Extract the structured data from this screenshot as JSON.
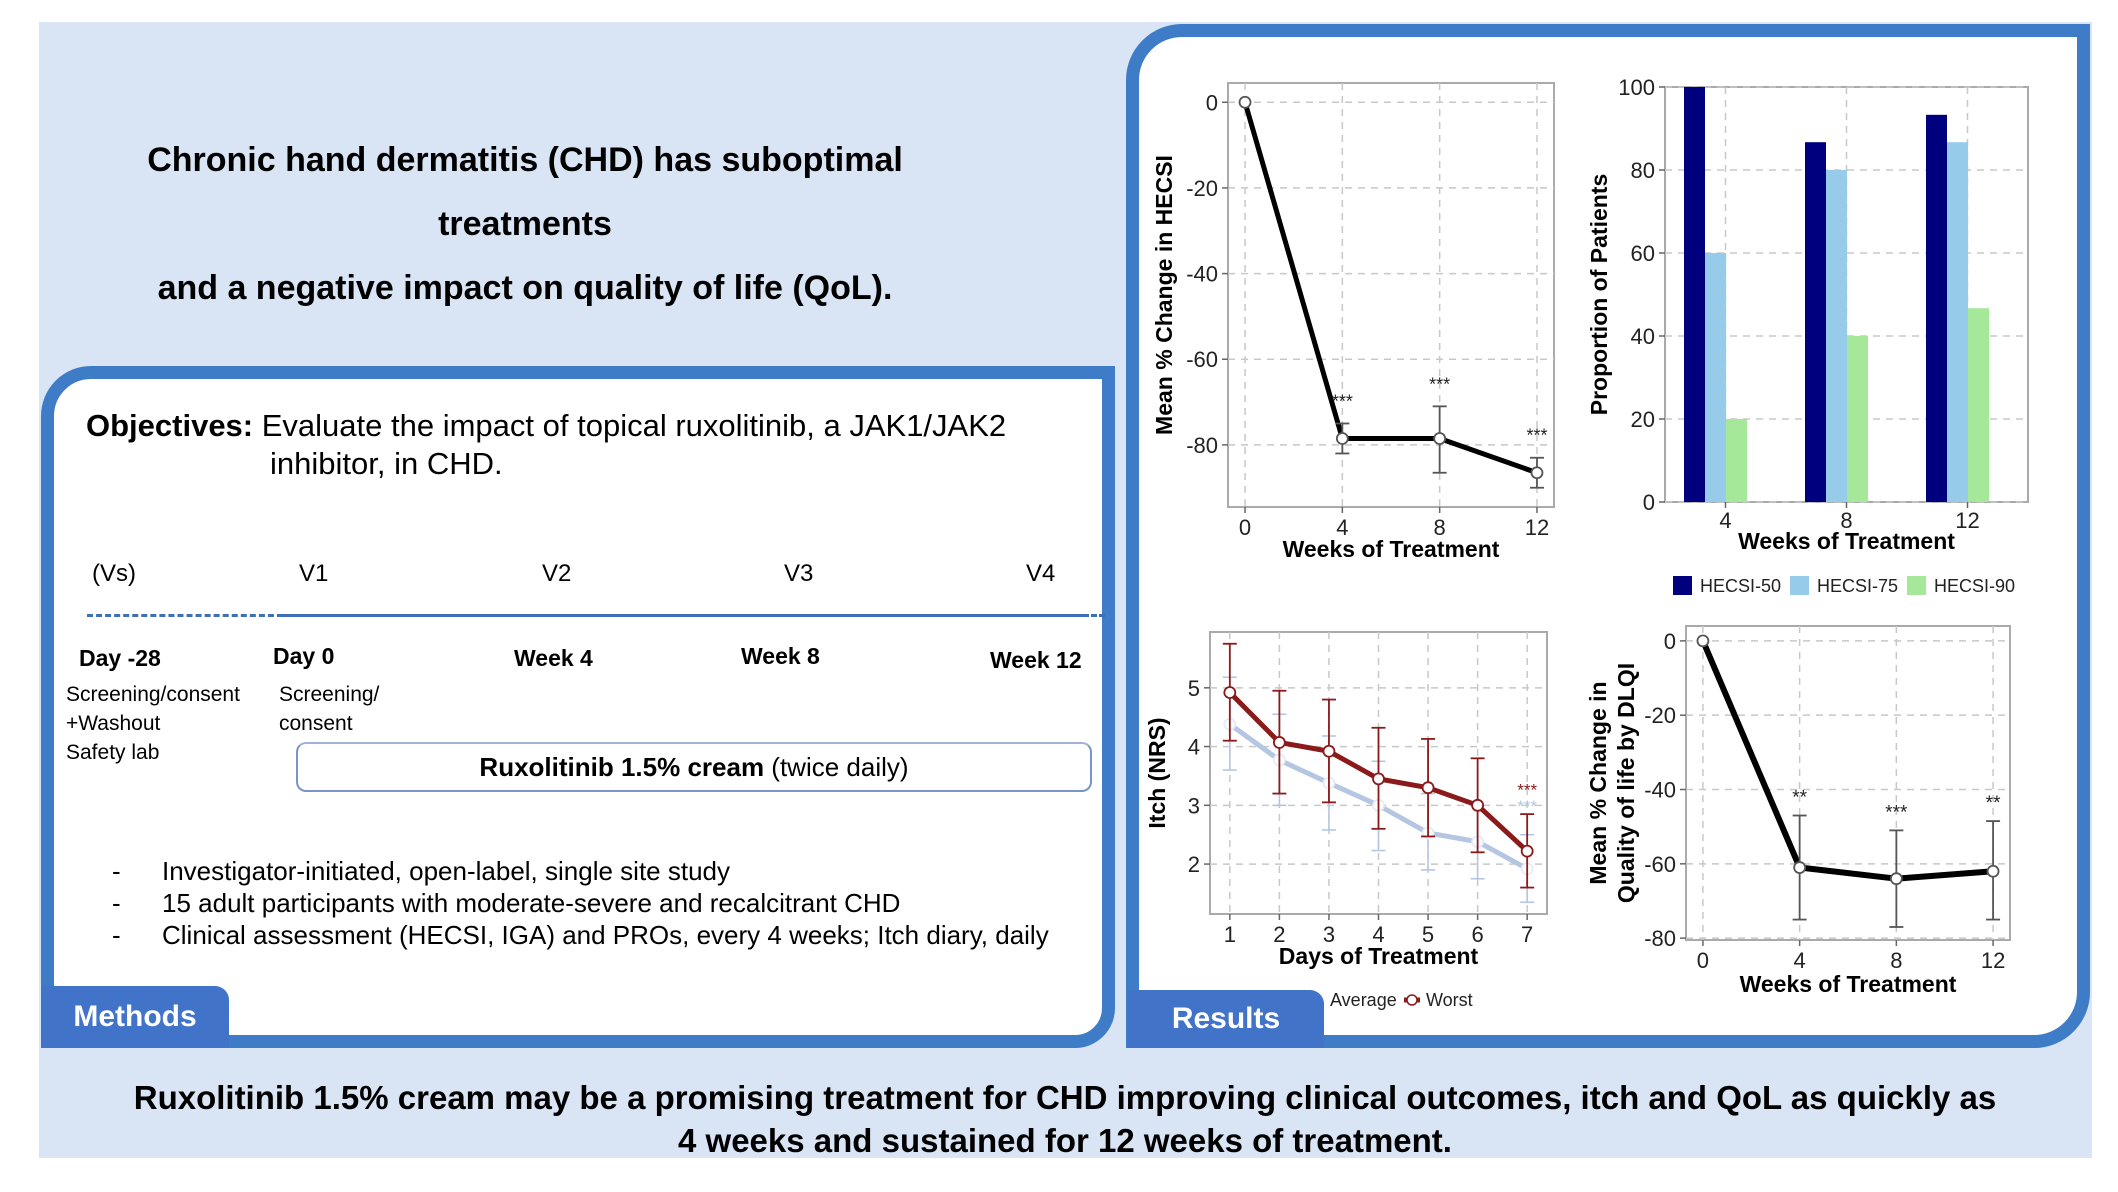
{
  "intro": {
    "line1": "Chronic hand dermatitis (CHD) has suboptimal treatments",
    "line2": "and a negative impact on quality of life (QoL)."
  },
  "methods": {
    "tab_label": "Methods",
    "objectives_label": "Objectives:",
    "objectives_text_1": "Evaluate the impact of topical ruxolitinib, a JAK1/JAK2",
    "objectives_text_2": "inhibitor, in CHD.",
    "timeline": {
      "visits": [
        "(Vs)",
        "V1",
        "V2",
        "V3",
        "V4"
      ],
      "times": [
        "Day -28",
        "Day 0",
        "Week 4",
        "Week 8",
        "Week 12"
      ],
      "screening_desc": [
        "Screening/consent",
        "+Washout",
        "Safety lab"
      ],
      "day0_desc": [
        "Screening/",
        "consent"
      ],
      "treatment_bold": "Ruxolitinib 1.5% cream",
      "treatment_rest": " (twice daily)"
    },
    "bullets": [
      "Investigator-initiated, open-label, single site study",
      "15 adult participants with moderate-severe and recalcitrant CHD",
      "Clinical assessment (HECSI, IGA) and PROs, every 4 weeks; Itch diary, daily"
    ]
  },
  "results": {
    "tab_label": "Results"
  },
  "conclusion": {
    "line1": "Ruxolitinib 1.5% cream may be a promising treatment for CHD improving clinical outcomes, itch and QoL as quickly as",
    "line2": "4 weeks and sustained for 12 weeks of treatment."
  },
  "colors": {
    "panel_border": "#3f7cc8",
    "tab": "#4174c9",
    "background": "#d9e4f4",
    "hecsi50": "#00007f",
    "hecsi75": "#97cbea",
    "hecsi90": "#a5e89a",
    "worst": "#8b1a1a",
    "average": "#b5c6e2"
  },
  "chart_data": [
    {
      "id": "hecsi",
      "type": "line",
      "title": "",
      "xlabel": "Weeks of Treatment",
      "ylabel": "Mean % Change in HECSI",
      "x": [
        0,
        4,
        8,
        12
      ],
      "xticks": [
        0,
        4,
        8,
        12
      ],
      "yticks": [
        0,
        -20,
        -40,
        -60,
        -80
      ],
      "xlim": [
        -0.7,
        12.7
      ],
      "ylim": [
        -94.5,
        4.5
      ],
      "grid": true,
      "series": [
        {
          "name": "HECSI",
          "values": [
            0,
            -78.5,
            -78.5,
            -86.5
          ],
          "err_low": [
            0,
            -82,
            -86.5,
            -90
          ],
          "err_high": [
            0,
            -75,
            -71,
            -83
          ],
          "significance": [
            "",
            "***",
            "***",
            "***"
          ]
        }
      ]
    },
    {
      "id": "hecsi_response",
      "type": "bar",
      "xlabel": "Weeks of Treatment",
      "ylabel": "Proportion of Patients",
      "categories": [
        "4",
        "8",
        "12"
      ],
      "yticks": [
        0,
        20,
        40,
        60,
        80,
        100
      ],
      "ylim": [
        0,
        100
      ],
      "grid": true,
      "legend_position": "bottom",
      "series": [
        {
          "name": "HECSI-50",
          "values": [
            100,
            86.7,
            93.3
          ]
        },
        {
          "name": "HECSI-75",
          "values": [
            60,
            80,
            86.7
          ]
        },
        {
          "name": "HECSI-90",
          "values": [
            20,
            40,
            46.7
          ]
        }
      ]
    },
    {
      "id": "itch",
      "type": "line",
      "xlabel": "Days of Treatment",
      "ylabel": "Itch (NRS)",
      "x": [
        1,
        2,
        3,
        4,
        5,
        6,
        7
      ],
      "xticks": [
        1,
        2,
        3,
        4,
        5,
        6,
        7
      ],
      "yticks": [
        2,
        3,
        4,
        5
      ],
      "xlim": [
        0.6,
        7.4
      ],
      "ylim": [
        1.15,
        5.95
      ],
      "grid": true,
      "legend_position": "bottom",
      "series": [
        {
          "name": "Average",
          "values": [
            4.38,
            3.77,
            3.38,
            3.0,
            2.53,
            2.38,
            1.92
          ],
          "err_low": [
            3.6,
            3.0,
            2.58,
            2.23,
            1.9,
            1.75,
            1.35
          ],
          "err_high": [
            5.18,
            4.55,
            4.18,
            3.75,
            3.2,
            3.0,
            2.5
          ],
          "significance_last": "***"
        },
        {
          "name": "Worst",
          "values": [
            4.92,
            4.07,
            3.92,
            3.45,
            3.3,
            3.0,
            2.22
          ],
          "err_low": [
            4.1,
            3.2,
            3.05,
            2.6,
            2.47,
            2.2,
            1.6
          ],
          "err_high": [
            5.75,
            4.95,
            4.8,
            4.32,
            4.13,
            3.8,
            2.85
          ],
          "significance_last": "***"
        }
      ]
    },
    {
      "id": "dlqi",
      "type": "line",
      "xlabel": "Weeks of Treatment",
      "ylabel": "Mean % Change in Quality of life by DLQI",
      "ylabel_lines": [
        "Mean % Change in",
        "Quality of life by DLQI"
      ],
      "x": [
        0,
        4,
        8,
        12
      ],
      "xticks": [
        0,
        4,
        8,
        12
      ],
      "yticks": [
        0,
        -20,
        -40,
        -60,
        -80
      ],
      "xlim": [
        -0.7,
        12.7
      ],
      "ylim": [
        -80.5,
        4
      ],
      "grid": true,
      "series": [
        {
          "name": "DLQI",
          "values": [
            0,
            -61,
            -64,
            -62
          ],
          "err_low": [
            0,
            -75,
            -77,
            -75
          ],
          "err_high": [
            0,
            -47,
            -51,
            -48.5
          ],
          "significance": [
            "",
            "**",
            "***",
            "**"
          ]
        }
      ]
    }
  ]
}
